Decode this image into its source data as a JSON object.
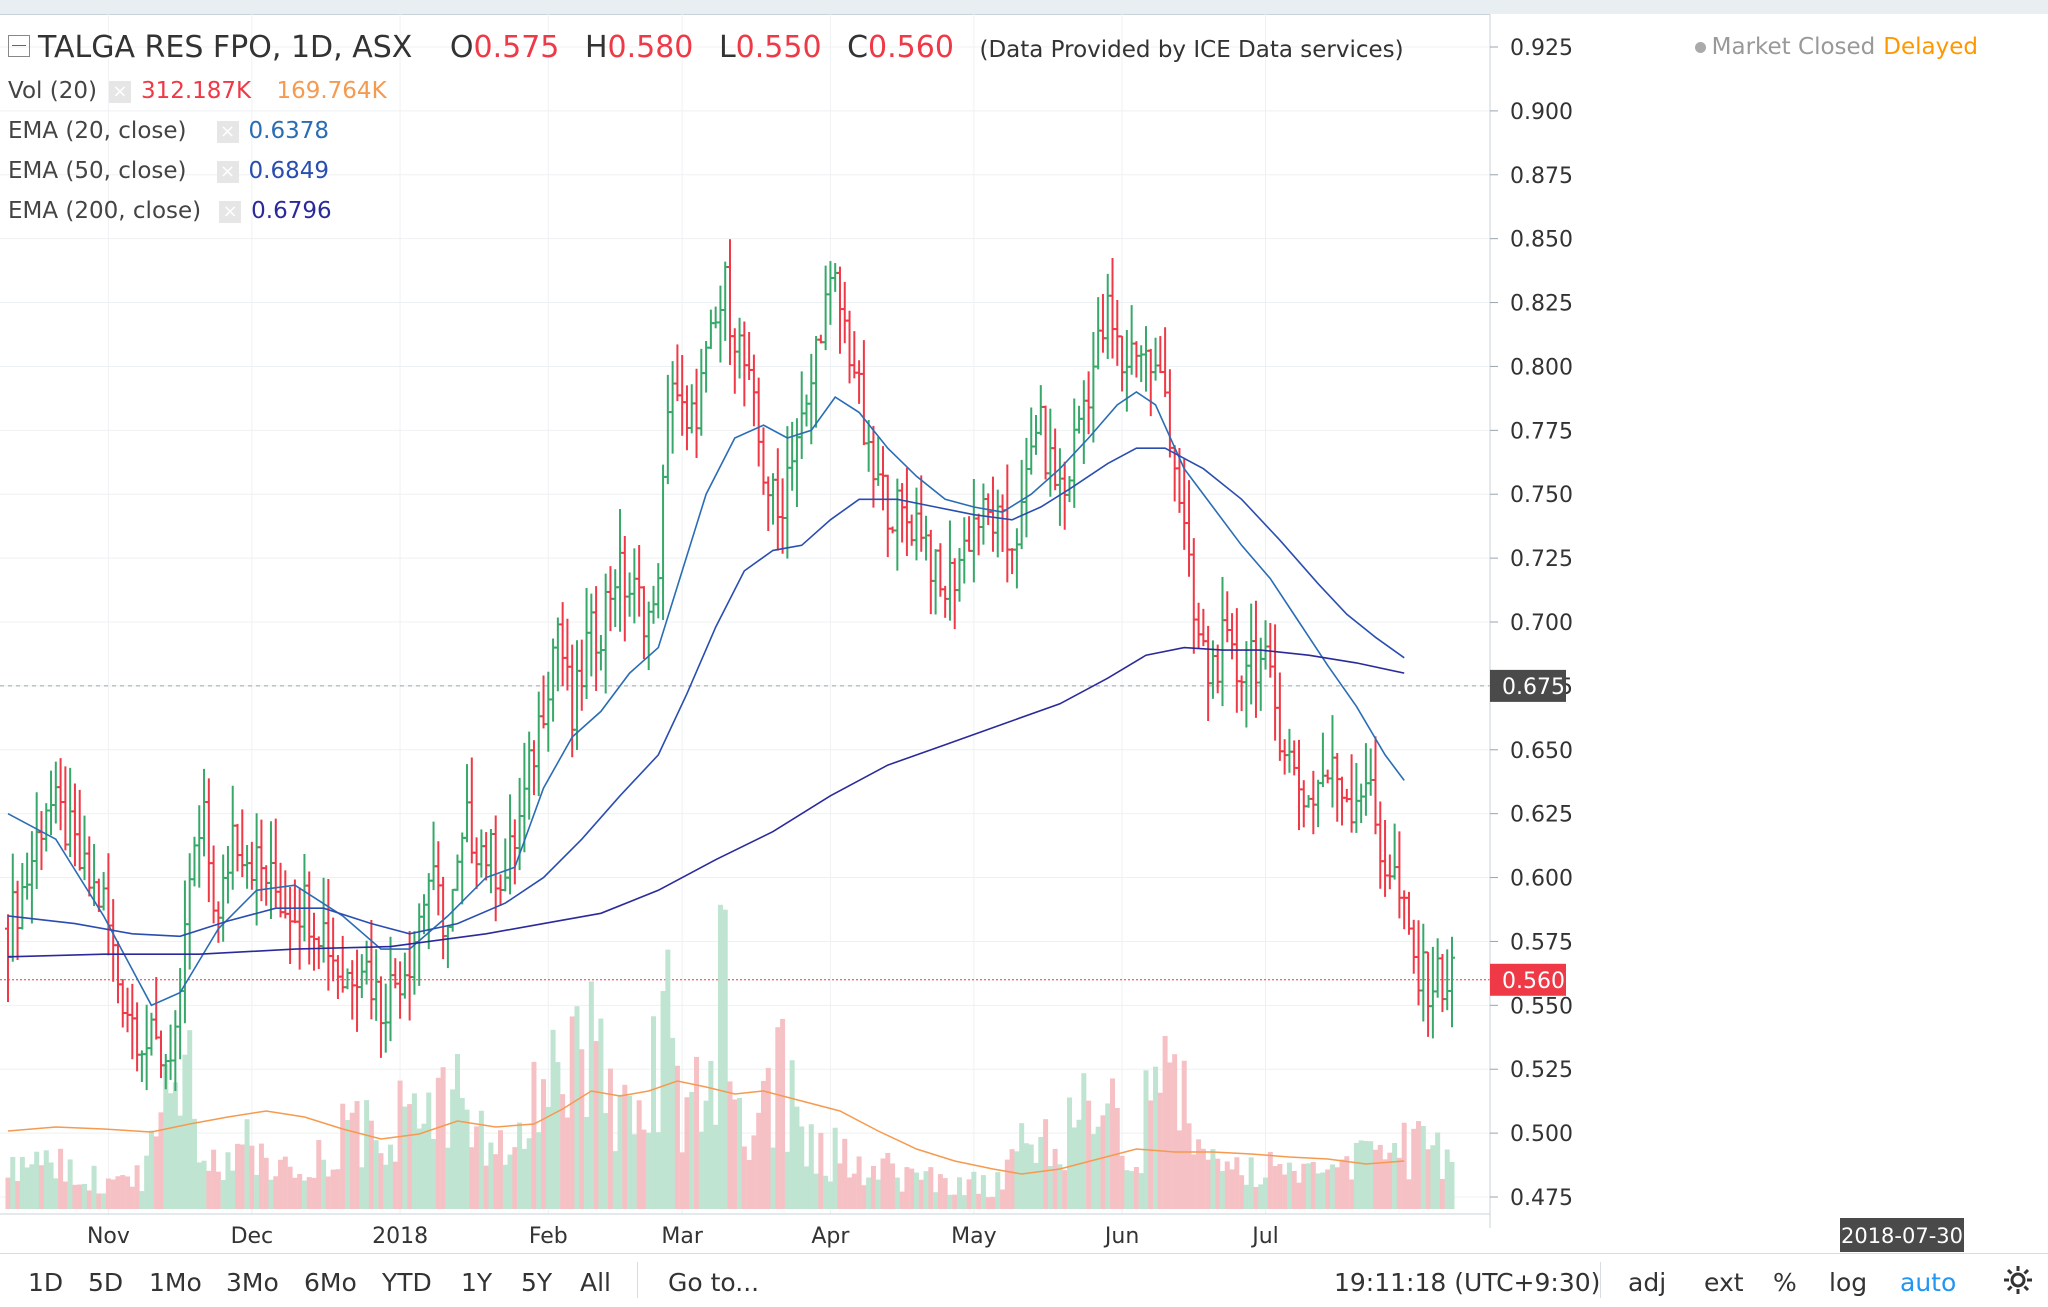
{
  "header": {
    "symbol": "TALGA RES FPO, 1D, ASX",
    "o_label": "O",
    "o_value": "0.575",
    "h_label": "H",
    "h_value": "0.580",
    "l_label": "L",
    "l_value": "0.550",
    "c_label": "C",
    "c_value": "0.560",
    "source": "(Data Provided by ICE Data services)",
    "market_status": "Market Closed",
    "delayed": "Delayed"
  },
  "indicators": [
    {
      "label": "Vol (20)",
      "values": [
        "312.187K",
        "169.764K"
      ],
      "colors": [
        "#ef3946",
        "#f59a4f"
      ]
    },
    {
      "label": "EMA (20, close)",
      "values": [
        "0.6378"
      ],
      "colors": [
        "#2a6db5"
      ]
    },
    {
      "label": "EMA (50, close)",
      "values": [
        "0.6849"
      ],
      "colors": [
        "#2a4db0"
      ]
    },
    {
      "label": "EMA (200, close)",
      "values": [
        "0.6796"
      ],
      "colors": [
        "#2b2a9b"
      ]
    }
  ],
  "toolbar": {
    "ranges": [
      "1D",
      "5D",
      "1Mo",
      "3Mo",
      "6Mo",
      "YTD",
      "1Y",
      "5Y",
      "All"
    ],
    "goto": "Go to...",
    "time": "19:11:18 (UTC+9:30)",
    "options": [
      "adj",
      "ext",
      "%",
      "log",
      "auto"
    ]
  },
  "colors": {
    "up": "#37a869",
    "down": "#ef3946",
    "vol_up": "#bfe4d1",
    "vol_down": "#f6c1c5",
    "ema20": "#2a6db5",
    "ema50": "#2a4db0",
    "ema200": "#2b2a9b",
    "vol_ma": "#f59a4f"
  },
  "chart_data": {
    "type": "ohlc",
    "ylim": [
      0.455,
      0.935
    ],
    "y_ticks": [
      0.475,
      0.5,
      0.525,
      0.55,
      0.575,
      0.6,
      0.625,
      0.65,
      0.675,
      0.7,
      0.725,
      0.75,
      0.775,
      0.8,
      0.825,
      0.85,
      0.875,
      0.9,
      0.925
    ],
    "y_tick_labels": [
      "0.475",
      "0.500",
      "0.525",
      "0.550",
      "0.575",
      "0.600",
      "0.625",
      "0.650",
      "0.675",
      "0.700",
      "0.725",
      "0.750",
      "0.775",
      "0.800",
      "0.825",
      "0.850",
      "0.875",
      "0.900",
      "0.925"
    ],
    "x_labels": [
      {
        "day": 21,
        "label": "Nov"
      },
      {
        "day": 51,
        "label": "Dec"
      },
      {
        "day": 82,
        "label": "2018"
      },
      {
        "day": 113,
        "label": "Feb"
      },
      {
        "day": 141,
        "label": "Mar"
      },
      {
        "day": 172,
        "label": "Apr"
      },
      {
        "day": 202,
        "label": "May"
      },
      {
        "day": 233,
        "label": "Jun"
      },
      {
        "day": 263,
        "label": "Jul"
      }
    ],
    "last_date_label": "2018-07-30",
    "last_price_label": "0.560",
    "crosshair_price_label": "0.675",
    "crosshair_price": 0.675,
    "days_span": [
      0,
      302
    ],
    "closes": [
      [
        0,
        0.58
      ],
      [
        4,
        0.6
      ],
      [
        8,
        0.63
      ],
      [
        12,
        0.62
      ],
      [
        16,
        0.6
      ],
      [
        20,
        0.59
      ],
      [
        23,
        0.56
      ],
      [
        26,
        0.545
      ],
      [
        29,
        0.535
      ],
      [
        33,
        0.53
      ],
      [
        36,
        0.545
      ],
      [
        38,
        0.6
      ],
      [
        41,
        0.62
      ],
      [
        44,
        0.58
      ],
      [
        47,
        0.62
      ],
      [
        50,
        0.61
      ],
      [
        54,
        0.6
      ],
      [
        58,
        0.59
      ],
      [
        62,
        0.59
      ],
      [
        66,
        0.58
      ],
      [
        70,
        0.56
      ],
      [
        74,
        0.57
      ],
      [
        78,
        0.55
      ],
      [
        81,
        0.56
      ],
      [
        84,
        0.57
      ],
      [
        88,
        0.6
      ],
      [
        92,
        0.58
      ],
      [
        96,
        0.62
      ],
      [
        100,
        0.61
      ],
      [
        104,
        0.6
      ],
      [
        108,
        0.63
      ],
      [
        112,
        0.67
      ],
      [
        115,
        0.7
      ],
      [
        118,
        0.66
      ],
      [
        121,
        0.69
      ],
      [
        124,
        0.7
      ],
      [
        127,
        0.72
      ],
      [
        131,
        0.71
      ],
      [
        135,
        0.7
      ],
      [
        139,
        0.8
      ],
      [
        142,
        0.77
      ],
      [
        146,
        0.8
      ],
      [
        150,
        0.83
      ],
      [
        154,
        0.8
      ],
      [
        158,
        0.76
      ],
      [
        161,
        0.74
      ],
      [
        164,
        0.77
      ],
      [
        167,
        0.78
      ],
      [
        170,
        0.82
      ],
      [
        173,
        0.83
      ],
      [
        177,
        0.8
      ],
      [
        180,
        0.76
      ],
      [
        183,
        0.75
      ],
      [
        187,
        0.74
      ],
      [
        191,
        0.74
      ],
      [
        195,
        0.71
      ],
      [
        198,
        0.72
      ],
      [
        202,
        0.74
      ],
      [
        206,
        0.74
      ],
      [
        209,
        0.73
      ],
      [
        212,
        0.74
      ],
      [
        215,
        0.78
      ],
      [
        218,
        0.76
      ],
      [
        221,
        0.75
      ],
      [
        224,
        0.78
      ],
      [
        227,
        0.8
      ],
      [
        230,
        0.82
      ],
      [
        233,
        0.8
      ],
      [
        236,
        0.81
      ],
      [
        239,
        0.8
      ],
      [
        242,
        0.79
      ],
      [
        245,
        0.75
      ],
      [
        248,
        0.7
      ],
      [
        251,
        0.68
      ],
      [
        254,
        0.69
      ],
      [
        257,
        0.68
      ],
      [
        260,
        0.69
      ],
      [
        263,
        0.68
      ],
      [
        266,
        0.66
      ],
      [
        269,
        0.64
      ],
      [
        272,
        0.63
      ],
      [
        275,
        0.64
      ],
      [
        278,
        0.64
      ],
      [
        281,
        0.63
      ],
      [
        284,
        0.64
      ],
      [
        287,
        0.61
      ],
      [
        290,
        0.6
      ],
      [
        293,
        0.575
      ],
      [
        295,
        0.56
      ]
    ],
    "ema20": [
      [
        0,
        0.625
      ],
      [
        10,
        0.615
      ],
      [
        20,
        0.585
      ],
      [
        30,
        0.55
      ],
      [
        36,
        0.555
      ],
      [
        44,
        0.58
      ],
      [
        52,
        0.595
      ],
      [
        60,
        0.597
      ],
      [
        70,
        0.585
      ],
      [
        78,
        0.572
      ],
      [
        84,
        0.572
      ],
      [
        92,
        0.585
      ],
      [
        100,
        0.6
      ],
      [
        106,
        0.604
      ],
      [
        112,
        0.635
      ],
      [
        118,
        0.655
      ],
      [
        124,
        0.665
      ],
      [
        130,
        0.68
      ],
      [
        136,
        0.69
      ],
      [
        141,
        0.72
      ],
      [
        146,
        0.75
      ],
      [
        152,
        0.772
      ],
      [
        158,
        0.777
      ],
      [
        163,
        0.772
      ],
      [
        168,
        0.775
      ],
      [
        173,
        0.788
      ],
      [
        178,
        0.782
      ],
      [
        184,
        0.768
      ],
      [
        190,
        0.757
      ],
      [
        196,
        0.748
      ],
      [
        202,
        0.745
      ],
      [
        208,
        0.743
      ],
      [
        214,
        0.75
      ],
      [
        220,
        0.76
      ],
      [
        226,
        0.772
      ],
      [
        232,
        0.785
      ],
      [
        236,
        0.79
      ],
      [
        240,
        0.785
      ],
      [
        246,
        0.76
      ],
      [
        252,
        0.745
      ],
      [
        258,
        0.73
      ],
      [
        264,
        0.717
      ],
      [
        270,
        0.7
      ],
      [
        276,
        0.683
      ],
      [
        282,
        0.667
      ],
      [
        288,
        0.648
      ],
      [
        292,
        0.638
      ]
    ],
    "ema50": [
      [
        0,
        0.585
      ],
      [
        14,
        0.582
      ],
      [
        26,
        0.578
      ],
      [
        36,
        0.577
      ],
      [
        46,
        0.583
      ],
      [
        56,
        0.588
      ],
      [
        66,
        0.588
      ],
      [
        76,
        0.582
      ],
      [
        84,
        0.578
      ],
      [
        94,
        0.582
      ],
      [
        104,
        0.59
      ],
      [
        112,
        0.6
      ],
      [
        120,
        0.615
      ],
      [
        128,
        0.632
      ],
      [
        136,
        0.648
      ],
      [
        142,
        0.672
      ],
      [
        148,
        0.698
      ],
      [
        154,
        0.72
      ],
      [
        160,
        0.728
      ],
      [
        166,
        0.73
      ],
      [
        172,
        0.74
      ],
      [
        178,
        0.748
      ],
      [
        186,
        0.748
      ],
      [
        194,
        0.745
      ],
      [
        202,
        0.742
      ],
      [
        210,
        0.74
      ],
      [
        216,
        0.745
      ],
      [
        222,
        0.752
      ],
      [
        230,
        0.762
      ],
      [
        236,
        0.768
      ],
      [
        242,
        0.768
      ],
      [
        250,
        0.76
      ],
      [
        258,
        0.748
      ],
      [
        266,
        0.732
      ],
      [
        274,
        0.715
      ],
      [
        280,
        0.703
      ],
      [
        286,
        0.694
      ],
      [
        292,
        0.686
      ]
    ],
    "ema200": [
      [
        0,
        0.569
      ],
      [
        20,
        0.57
      ],
      [
        40,
        0.57
      ],
      [
        60,
        0.572
      ],
      [
        80,
        0.573
      ],
      [
        100,
        0.578
      ],
      [
        112,
        0.582
      ],
      [
        124,
        0.586
      ],
      [
        136,
        0.595
      ],
      [
        148,
        0.607
      ],
      [
        160,
        0.618
      ],
      [
        172,
        0.632
      ],
      [
        184,
        0.644
      ],
      [
        196,
        0.652
      ],
      [
        208,
        0.66
      ],
      [
        220,
        0.668
      ],
      [
        230,
        0.678
      ],
      [
        238,
        0.687
      ],
      [
        246,
        0.69
      ],
      [
        254,
        0.689
      ],
      [
        262,
        0.689
      ],
      [
        272,
        0.687
      ],
      [
        282,
        0.684
      ],
      [
        292,
        0.68
      ]
    ],
    "volume_spikes": [
      [
        0,
        40
      ],
      [
        4,
        95
      ],
      [
        12,
        70
      ],
      [
        20,
        35
      ],
      [
        28,
        48
      ],
      [
        34,
        160
      ],
      [
        36,
        240
      ],
      [
        42,
        60
      ],
      [
        50,
        110
      ],
      [
        56,
        70
      ],
      [
        62,
        45
      ],
      [
        72,
        130
      ],
      [
        78,
        80
      ],
      [
        84,
        190
      ],
      [
        90,
        120
      ],
      [
        96,
        190
      ],
      [
        104,
        55
      ],
      [
        110,
        160
      ],
      [
        113,
        240
      ],
      [
        116,
        130
      ],
      [
        118,
        300
      ],
      [
        124,
        190
      ],
      [
        130,
        130
      ],
      [
        134,
        150
      ],
      [
        138,
        260
      ],
      [
        140,
        160
      ],
      [
        146,
        130
      ],
      [
        150,
        330
      ],
      [
        154,
        80
      ],
      [
        158,
        140
      ],
      [
        162,
        175
      ],
      [
        168,
        80
      ],
      [
        176,
        75
      ],
      [
        186,
        50
      ],
      [
        196,
        40
      ],
      [
        206,
        30
      ],
      [
        214,
        95
      ],
      [
        222,
        110
      ],
      [
        228,
        170
      ],
      [
        232,
        165
      ],
      [
        236,
        40
      ],
      [
        242,
        325
      ],
      [
        248,
        85
      ],
      [
        256,
        70
      ],
      [
        262,
        60
      ],
      [
        270,
        45
      ],
      [
        278,
        45
      ],
      [
        284,
        85
      ],
      [
        290,
        80
      ]
    ],
    "volume_ma": [
      [
        0,
        78
      ],
      [
        10,
        82
      ],
      [
        20,
        80
      ],
      [
        30,
        77
      ],
      [
        38,
        85
      ],
      [
        46,
        92
      ],
      [
        54,
        98
      ],
      [
        62,
        92
      ],
      [
        70,
        80
      ],
      [
        78,
        70
      ],
      [
        86,
        75
      ],
      [
        94,
        88
      ],
      [
        102,
        82
      ],
      [
        110,
        85
      ],
      [
        116,
        100
      ],
      [
        122,
        118
      ],
      [
        128,
        113
      ],
      [
        134,
        118
      ],
      [
        140,
        128
      ],
      [
        146,
        122
      ],
      [
        152,
        115
      ],
      [
        158,
        118
      ],
      [
        166,
        108
      ],
      [
        174,
        98
      ],
      [
        182,
        78
      ],
      [
        190,
        60
      ],
      [
        198,
        48
      ],
      [
        206,
        40
      ],
      [
        212,
        35
      ],
      [
        220,
        40
      ],
      [
        228,
        50
      ],
      [
        236,
        60
      ],
      [
        244,
        57
      ],
      [
        252,
        57
      ],
      [
        260,
        55
      ],
      [
        268,
        52
      ],
      [
        276,
        50
      ],
      [
        284,
        45
      ],
      [
        292,
        48
      ]
    ]
  }
}
